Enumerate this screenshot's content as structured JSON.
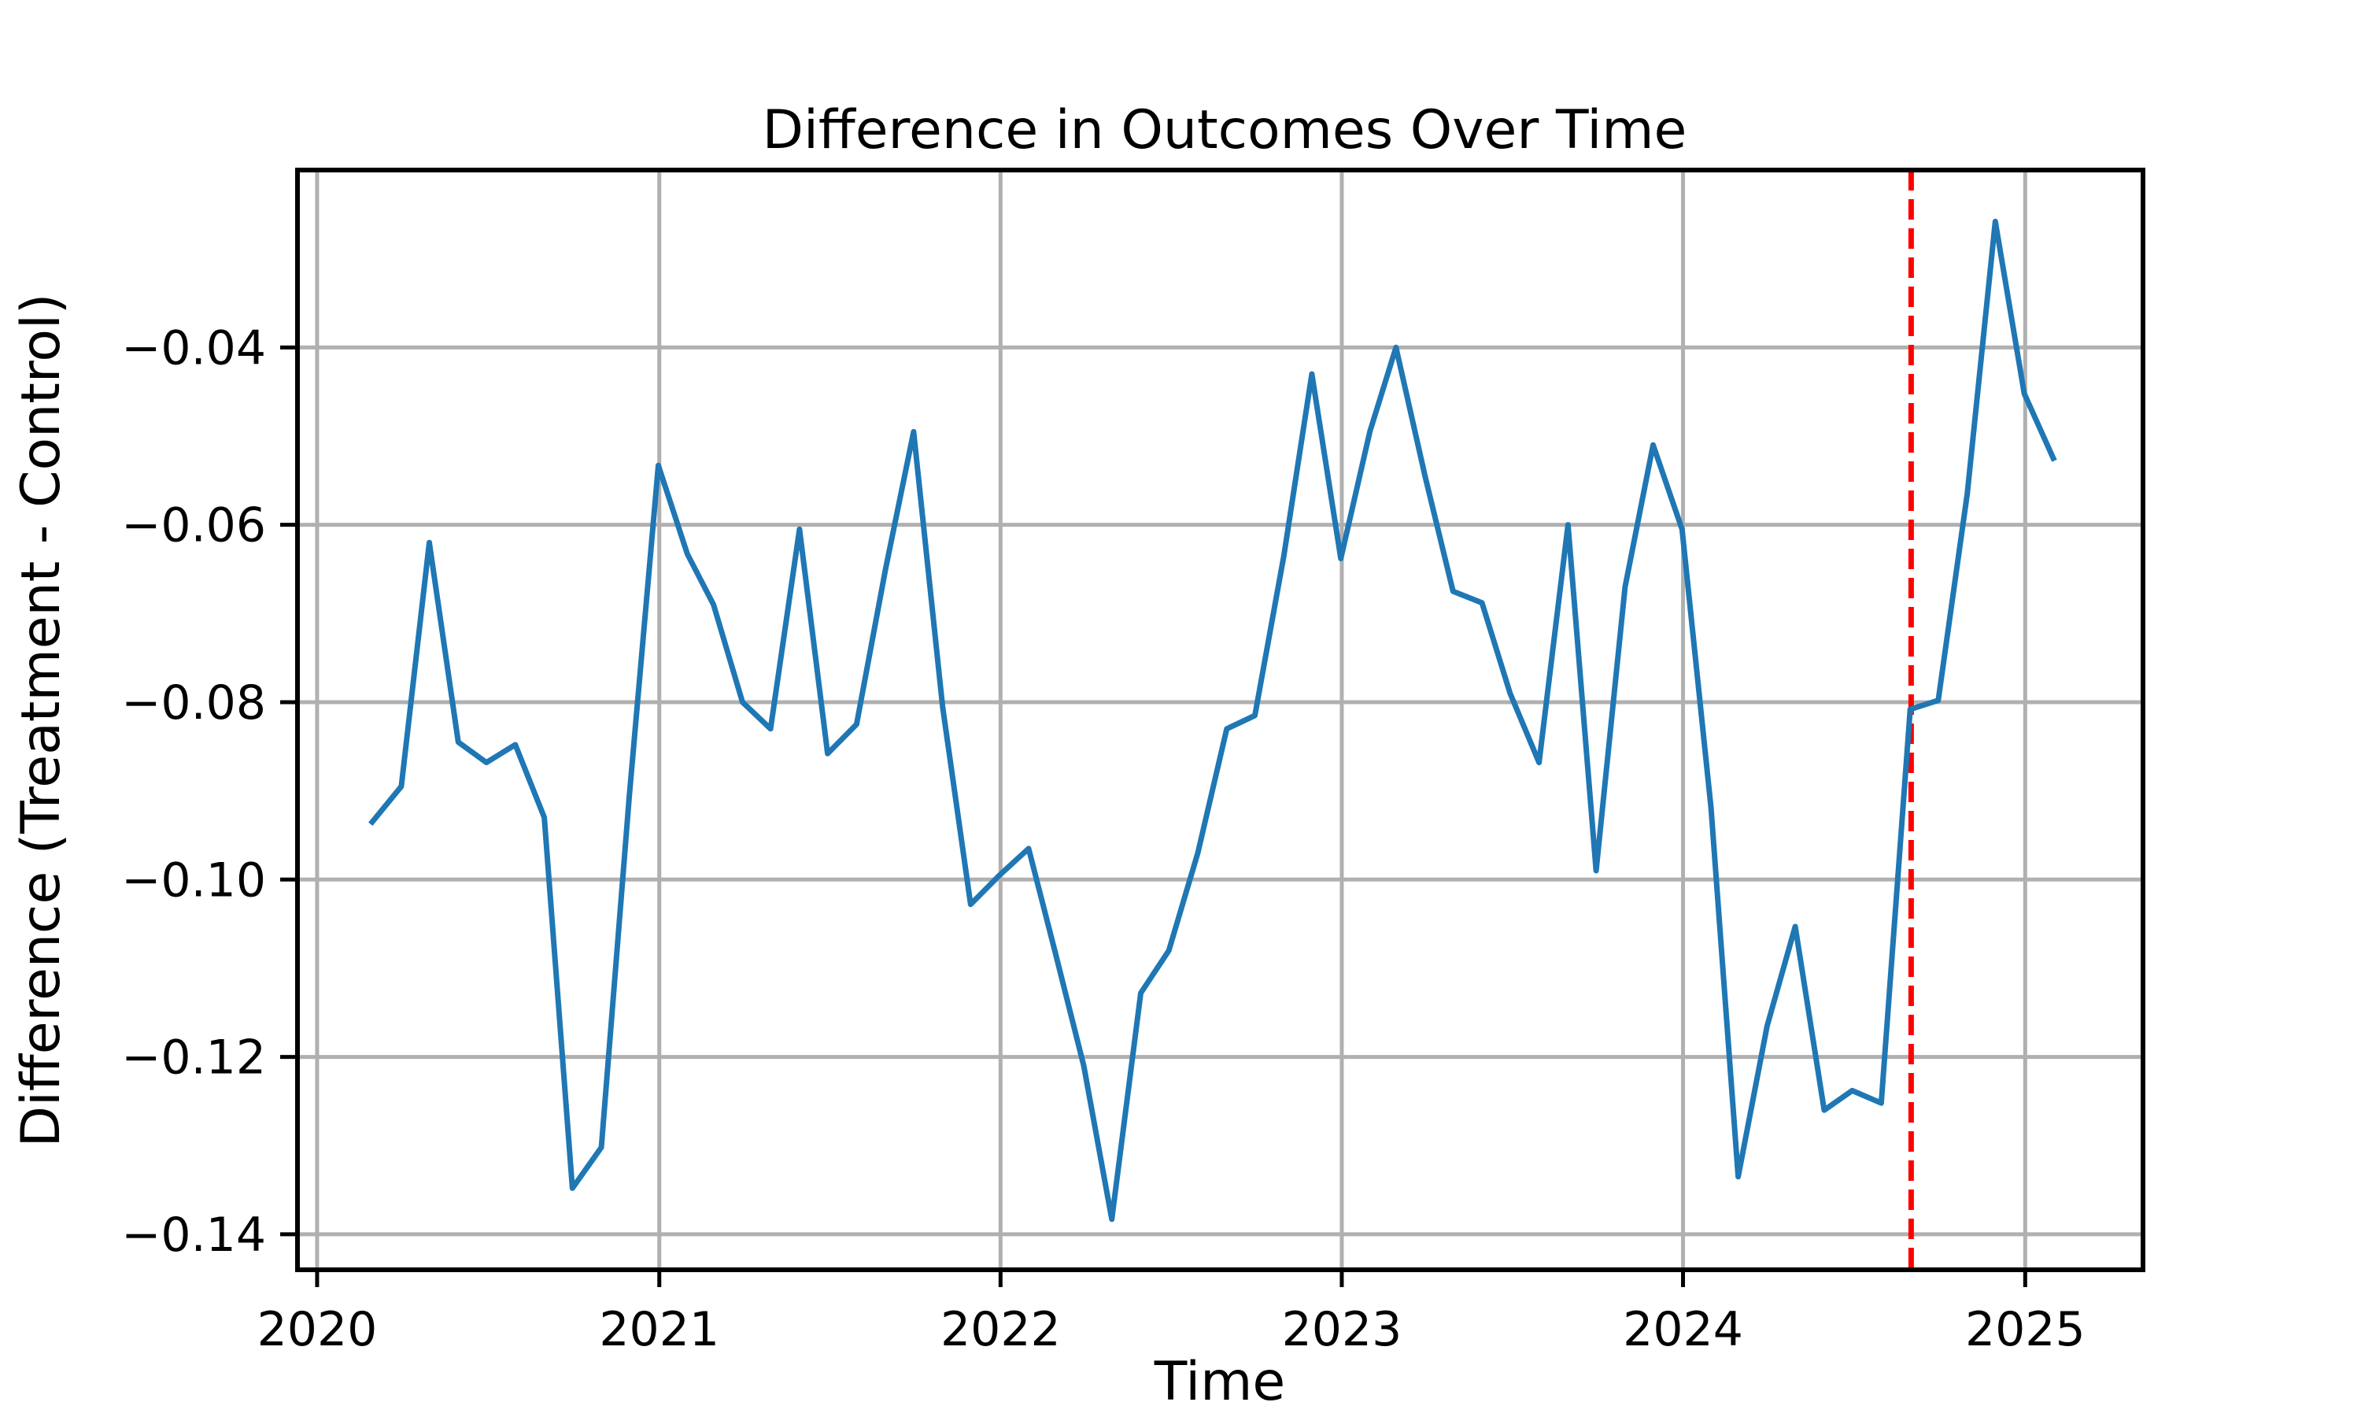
{
  "chart_data": {
    "type": "line",
    "title": "Difference in Outcomes Over Time",
    "xlabel": "Time",
    "ylabel": "Difference (Treatment - Control)",
    "xlim": [
      "2019-12-11",
      "2025-05-07"
    ],
    "ylim": [
      -0.144,
      -0.02
    ],
    "x_ticks": [
      "2020",
      "2021",
      "2022",
      "2023",
      "2024",
      "2025"
    ],
    "x_tick_dates": [
      "2020-01-01",
      "2021-01-01",
      "2022-01-01",
      "2023-01-01",
      "2024-01-01",
      "2025-01-01"
    ],
    "y_ticks": [
      -0.04,
      -0.06,
      -0.08,
      -0.1,
      -0.12,
      -0.14
    ],
    "y_tick_labels": [
      "−0.04",
      "−0.06",
      "−0.08",
      "−0.10",
      "−0.12",
      "−0.14"
    ],
    "grid": true,
    "series": [
      {
        "color": "#1f77b4",
        "x": [
          "2020-02-29",
          "2020-03-31",
          "2020-04-30",
          "2020-05-31",
          "2020-06-30",
          "2020-07-31",
          "2020-08-31",
          "2020-09-30",
          "2020-10-31",
          "2020-11-30",
          "2020-12-31",
          "2021-01-31",
          "2021-02-28",
          "2021-03-31",
          "2021-04-30",
          "2021-05-31",
          "2021-06-30",
          "2021-07-31",
          "2021-08-31",
          "2021-09-30",
          "2021-10-31",
          "2021-11-30",
          "2021-12-31",
          "2022-01-31",
          "2022-02-28",
          "2022-03-31",
          "2022-04-30",
          "2022-05-31",
          "2022-06-30",
          "2022-07-31",
          "2022-08-31",
          "2022-09-30",
          "2022-10-31",
          "2022-11-30",
          "2022-12-31",
          "2023-01-31",
          "2023-02-28",
          "2023-03-31",
          "2023-04-30",
          "2023-05-31",
          "2023-06-30",
          "2023-07-31",
          "2023-08-31",
          "2023-09-30",
          "2023-10-31",
          "2023-11-30",
          "2023-12-31",
          "2024-01-31",
          "2024-02-29",
          "2024-03-31",
          "2024-04-30",
          "2024-05-31",
          "2024-06-30",
          "2024-07-31",
          "2024-08-31",
          "2024-09-30",
          "2024-10-31",
          "2024-11-30",
          "2024-12-31",
          "2025-01-31"
        ],
        "values": [
          -0.0935,
          -0.0895,
          -0.062,
          -0.0845,
          -0.0868,
          -0.0848,
          -0.093,
          -0.1348,
          -0.1302,
          -0.0905,
          -0.0533,
          -0.0633,
          -0.069,
          -0.08,
          -0.083,
          -0.0605,
          -0.0858,
          -0.0825,
          -0.065,
          -0.0495,
          -0.0805,
          -0.1028,
          -0.0995,
          -0.0965,
          -0.108,
          -0.121,
          -0.1383,
          -0.1128,
          -0.108,
          -0.097,
          -0.083,
          -0.0815,
          -0.0635,
          -0.043,
          -0.0638,
          -0.0495,
          -0.04,
          -0.0545,
          -0.0675,
          -0.0688,
          -0.079,
          -0.0868,
          -0.06,
          -0.099,
          -0.067,
          -0.051,
          -0.0605,
          -0.092,
          -0.1335,
          -0.1165,
          -0.1053,
          -0.126,
          -0.1238,
          -0.1252,
          -0.0808,
          -0.0798,
          -0.0565,
          -0.0258,
          -0.0452,
          -0.0525
        ]
      }
    ],
    "vline": {
      "x": "2024-09-01",
      "color": "#ff0000",
      "style": "dashed"
    }
  }
}
